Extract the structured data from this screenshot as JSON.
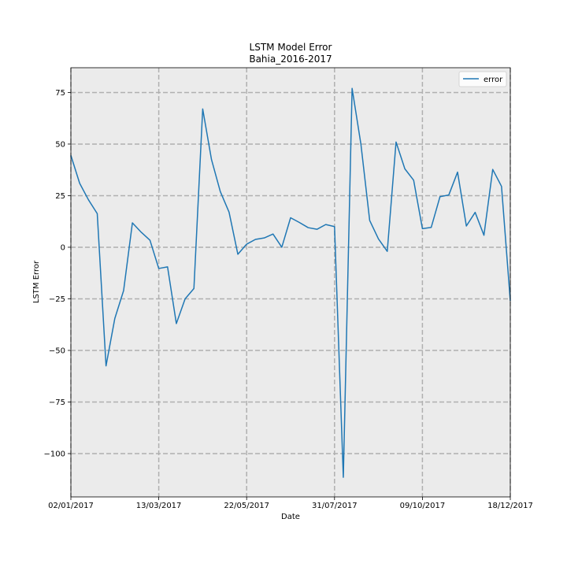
{
  "chart_data": {
    "type": "line",
    "title": "LSTM Model Error",
    "subtitle": "Bahia_2016-2017",
    "xlabel": "Date",
    "ylabel": "LSTM Error",
    "ylim": [
      -121,
      87
    ],
    "y_ticks": [
      75,
      50,
      25,
      0,
      -25,
      -50,
      -75,
      -100
    ],
    "y_tick_labels": [
      "75",
      "50",
      "25",
      "0",
      "−25",
      "−50",
      "−75",
      "−100"
    ],
    "x_tick_labels": [
      "02/01/2017",
      "13/03/2017",
      "22/05/2017",
      "31/07/2017",
      "09/10/2017",
      "18/12/2017"
    ],
    "x_tick_index": [
      0,
      10,
      20,
      30,
      40,
      50
    ],
    "grid": true,
    "legend_position": "top-right",
    "series": [
      {
        "name": "error",
        "color": "#1f77b4",
        "values": [
          44.5,
          31,
          23,
          16.3,
          -57.5,
          -34.5,
          -21,
          11.8,
          7.3,
          3.4,
          -10.3,
          -9.5,
          -37,
          -25,
          -20,
          67,
          42.5,
          27,
          17,
          -3.4,
          1.5,
          3.8,
          4.5,
          6.4,
          0,
          14.3,
          12,
          9.5,
          8.7,
          11,
          10,
          -111.5,
          77,
          50,
          13,
          4,
          -2,
          51,
          38,
          32.5,
          9,
          9.6,
          24.5,
          25.3,
          36.4,
          10.3,
          16.9,
          5.8,
          37.7,
          29.5,
          -26
        ]
      }
    ]
  }
}
